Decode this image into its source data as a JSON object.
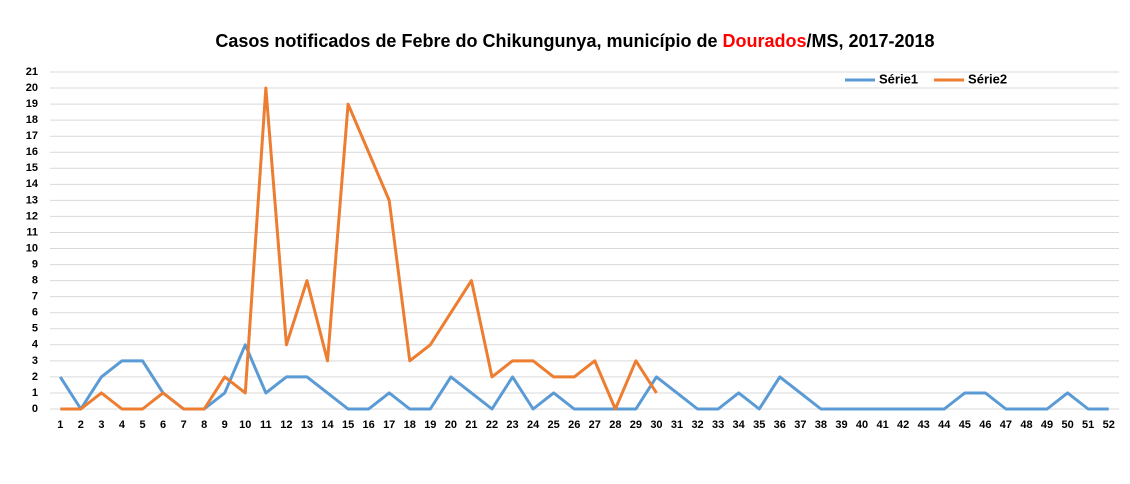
{
  "chart_data": {
    "type": "line",
    "title": [
      "Casos notificados de Febre do Chikungunya, município de ",
      "Dourados",
      "/MS, 2017-2018"
    ],
    "title_highlight_color": "#ff0000",
    "categories": [
      1,
      2,
      3,
      4,
      5,
      6,
      7,
      8,
      9,
      10,
      11,
      12,
      13,
      14,
      15,
      16,
      17,
      18,
      19,
      20,
      21,
      22,
      23,
      24,
      25,
      26,
      27,
      28,
      29,
      30,
      31,
      32,
      33,
      34,
      35,
      36,
      37,
      38,
      39,
      40,
      41,
      42,
      43,
      44,
      45,
      46,
      47,
      48,
      49,
      50,
      51,
      52
    ],
    "series": [
      {
        "name": "Série1",
        "color": "#5b9bd5",
        "values": [
          2,
          0,
          2,
          3,
          3,
          1,
          0,
          0,
          1,
          4,
          1,
          2,
          2,
          1,
          0,
          0,
          1,
          0,
          0,
          2,
          1,
          0,
          2,
          0,
          1,
          0,
          0,
          0,
          0,
          2,
          1,
          0,
          0,
          1,
          0,
          2,
          1,
          0,
          0,
          0,
          0,
          0,
          0,
          0,
          1,
          1,
          0,
          0,
          0,
          1,
          0,
          0
        ]
      },
      {
        "name": "Série2",
        "color": "#ed7d31",
        "values": [
          0,
          0,
          1,
          0,
          0,
          1,
          0,
          0,
          2,
          1,
          20,
          4,
          8,
          3,
          19,
          16,
          13,
          3,
          4,
          6,
          8,
          2,
          3,
          3,
          2,
          2,
          3,
          0,
          3,
          1,
          null,
          null,
          null,
          null,
          null,
          null,
          null,
          null,
          null,
          null,
          null,
          null,
          null,
          null,
          null,
          null,
          null,
          null,
          null,
          null,
          null,
          null
        ]
      }
    ],
    "ylim": [
      0,
      21
    ],
    "yticks": [
      0,
      1,
      2,
      3,
      4,
      5,
      6,
      7,
      8,
      9,
      10,
      11,
      12,
      13,
      14,
      15,
      16,
      17,
      18,
      19,
      20,
      21
    ],
    "grid": true,
    "legend": "top-right"
  }
}
